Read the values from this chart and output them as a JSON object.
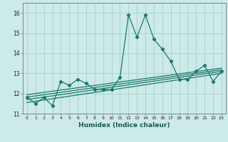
{
  "xlabel": "Humidex (Indice chaleur)",
  "x_values": [
    0,
    1,
    2,
    3,
    4,
    5,
    6,
    7,
    8,
    9,
    10,
    11,
    12,
    13,
    14,
    15,
    16,
    17,
    18,
    19,
    20,
    21,
    22,
    23
  ],
  "y_main": [
    11.8,
    11.5,
    11.8,
    11.4,
    12.6,
    12.4,
    12.7,
    12.5,
    12.2,
    12.2,
    12.2,
    12.8,
    15.9,
    14.8,
    15.9,
    14.7,
    14.2,
    13.6,
    12.7,
    12.7,
    13.1,
    13.4,
    12.6,
    13.1
  ],
  "regression_offsets": [
    [
      11.55,
      13.0
    ],
    [
      11.7,
      13.1
    ],
    [
      11.82,
      13.18
    ],
    [
      11.94,
      13.26
    ]
  ],
  "line_color": "#1a7a6e",
  "bg_color": "#cceae7",
  "grid_color": "#aacfcc",
  "ylim": [
    11.0,
    16.5
  ],
  "xlim": [
    -0.5,
    23.5
  ],
  "yticks": [
    11,
    12,
    13,
    14,
    15,
    16
  ],
  "xticks": [
    0,
    1,
    2,
    3,
    4,
    5,
    6,
    7,
    8,
    9,
    10,
    11,
    12,
    13,
    14,
    15,
    16,
    17,
    18,
    19,
    20,
    21,
    22,
    23
  ]
}
